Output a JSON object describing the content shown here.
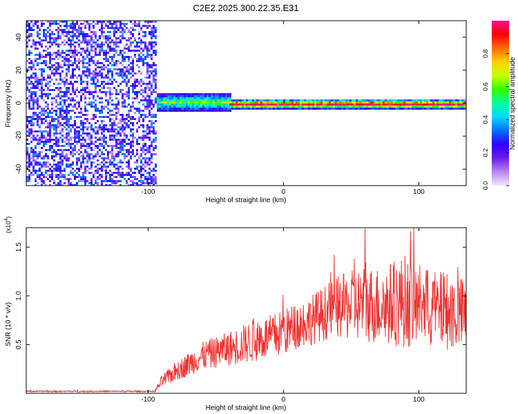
{
  "chart_data": [
    {
      "type": "heatmap",
      "title": "C2E2.2025.300.22.35.E31",
      "xlabel": "Height of straight line (km)",
      "ylabel": "Frequency (Hz)",
      "xlim": [
        -190,
        135
      ],
      "ylim": [
        -50,
        50
      ],
      "xticks": [
        -100,
        0,
        100
      ],
      "xtick_labels": [
        "-100",
        "0",
        "100"
      ],
      "yticks": [
        -40,
        -20,
        0,
        20,
        40
      ],
      "ytick_labels": [
        "-40",
        "-20",
        "0",
        "20",
        "40"
      ],
      "colorbar": {
        "label": "Normalized spectral amplitude",
        "range": [
          0,
          1
        ],
        "ticks": [
          0,
          0.2,
          0.4,
          0.6,
          0.8
        ],
        "tick_labels": [
          "0.0",
          "0.2",
          "0.4",
          "0.6",
          "0.8"
        ],
        "colors": [
          "#f2e6fa",
          "#b986f5",
          "#6a1ee8",
          "#2f00ff",
          "#0072ff",
          "#00d9ff",
          "#00ff9c",
          "#33ff00",
          "#c8ff00",
          "#ffd000",
          "#ff6a00",
          "#ff0000",
          "#ff1090"
        ]
      },
      "regions": [
        {
          "name": "noise",
          "x_range": [
            -190,
            -95
          ],
          "freq_range": [
            -50,
            50
          ],
          "amplitude": 0.15
        },
        {
          "name": "signal onset",
          "x_range": [
            -95,
            -40
          ],
          "freq_center": 1,
          "freq_halfwidth": 6,
          "amplitude": 0.55
        },
        {
          "name": "steady tone",
          "x_range": [
            -40,
            135
          ],
          "freq_center": 0,
          "freq_halfwidth": 3,
          "amplitude": 0.9
        }
      ]
    },
    {
      "type": "line",
      "xlabel": "Height of straight line (km)",
      "ylabel": "SNR (10 * v/v)",
      "y_multiplier_label": "(x10",
      "y_multiplier_exponent": "4",
      "xlim": [
        -190,
        135
      ],
      "ylim": [
        0,
        1.7
      ],
      "xticks": [
        -100,
        0,
        100
      ],
      "xtick_labels": [
        "-100",
        "0",
        "100"
      ],
      "yticks": [
        0.5,
        1.0,
        1.5
      ],
      "ytick_labels": [
        "0.5",
        "1.0",
        "1.5"
      ],
      "color": "#ee3333",
      "series": [
        {
          "name": "SNR",
          "x": [
            -190,
            -170,
            -150,
            -130,
            -110,
            -95,
            -90,
            -80,
            -70,
            -60,
            -50,
            -40,
            -30,
            -20,
            -10,
            0,
            10,
            20,
            30,
            40,
            50,
            60,
            70,
            80,
            90,
            100,
            110,
            120,
            130,
            135
          ],
          "y": [
            0.02,
            0.02,
            0.02,
            0.02,
            0.02,
            0.02,
            0.12,
            0.22,
            0.3,
            0.38,
            0.42,
            0.46,
            0.5,
            0.55,
            0.58,
            0.62,
            0.7,
            0.75,
            0.82,
            0.88,
            0.9,
            0.92,
            0.9,
            0.92,
            0.95,
            0.9,
            0.86,
            0.85,
            0.82,
            0.8
          ],
          "spread": [
            0.01,
            0.01,
            0.01,
            0.01,
            0.01,
            0.01,
            0.08,
            0.12,
            0.15,
            0.18,
            0.2,
            0.22,
            0.25,
            0.28,
            0.28,
            0.3,
            0.3,
            0.32,
            0.35,
            0.4,
            0.45,
            0.5,
            0.5,
            0.55,
            0.6,
            0.55,
            0.5,
            0.5,
            0.48,
            0.45
          ]
        }
      ]
    }
  ]
}
